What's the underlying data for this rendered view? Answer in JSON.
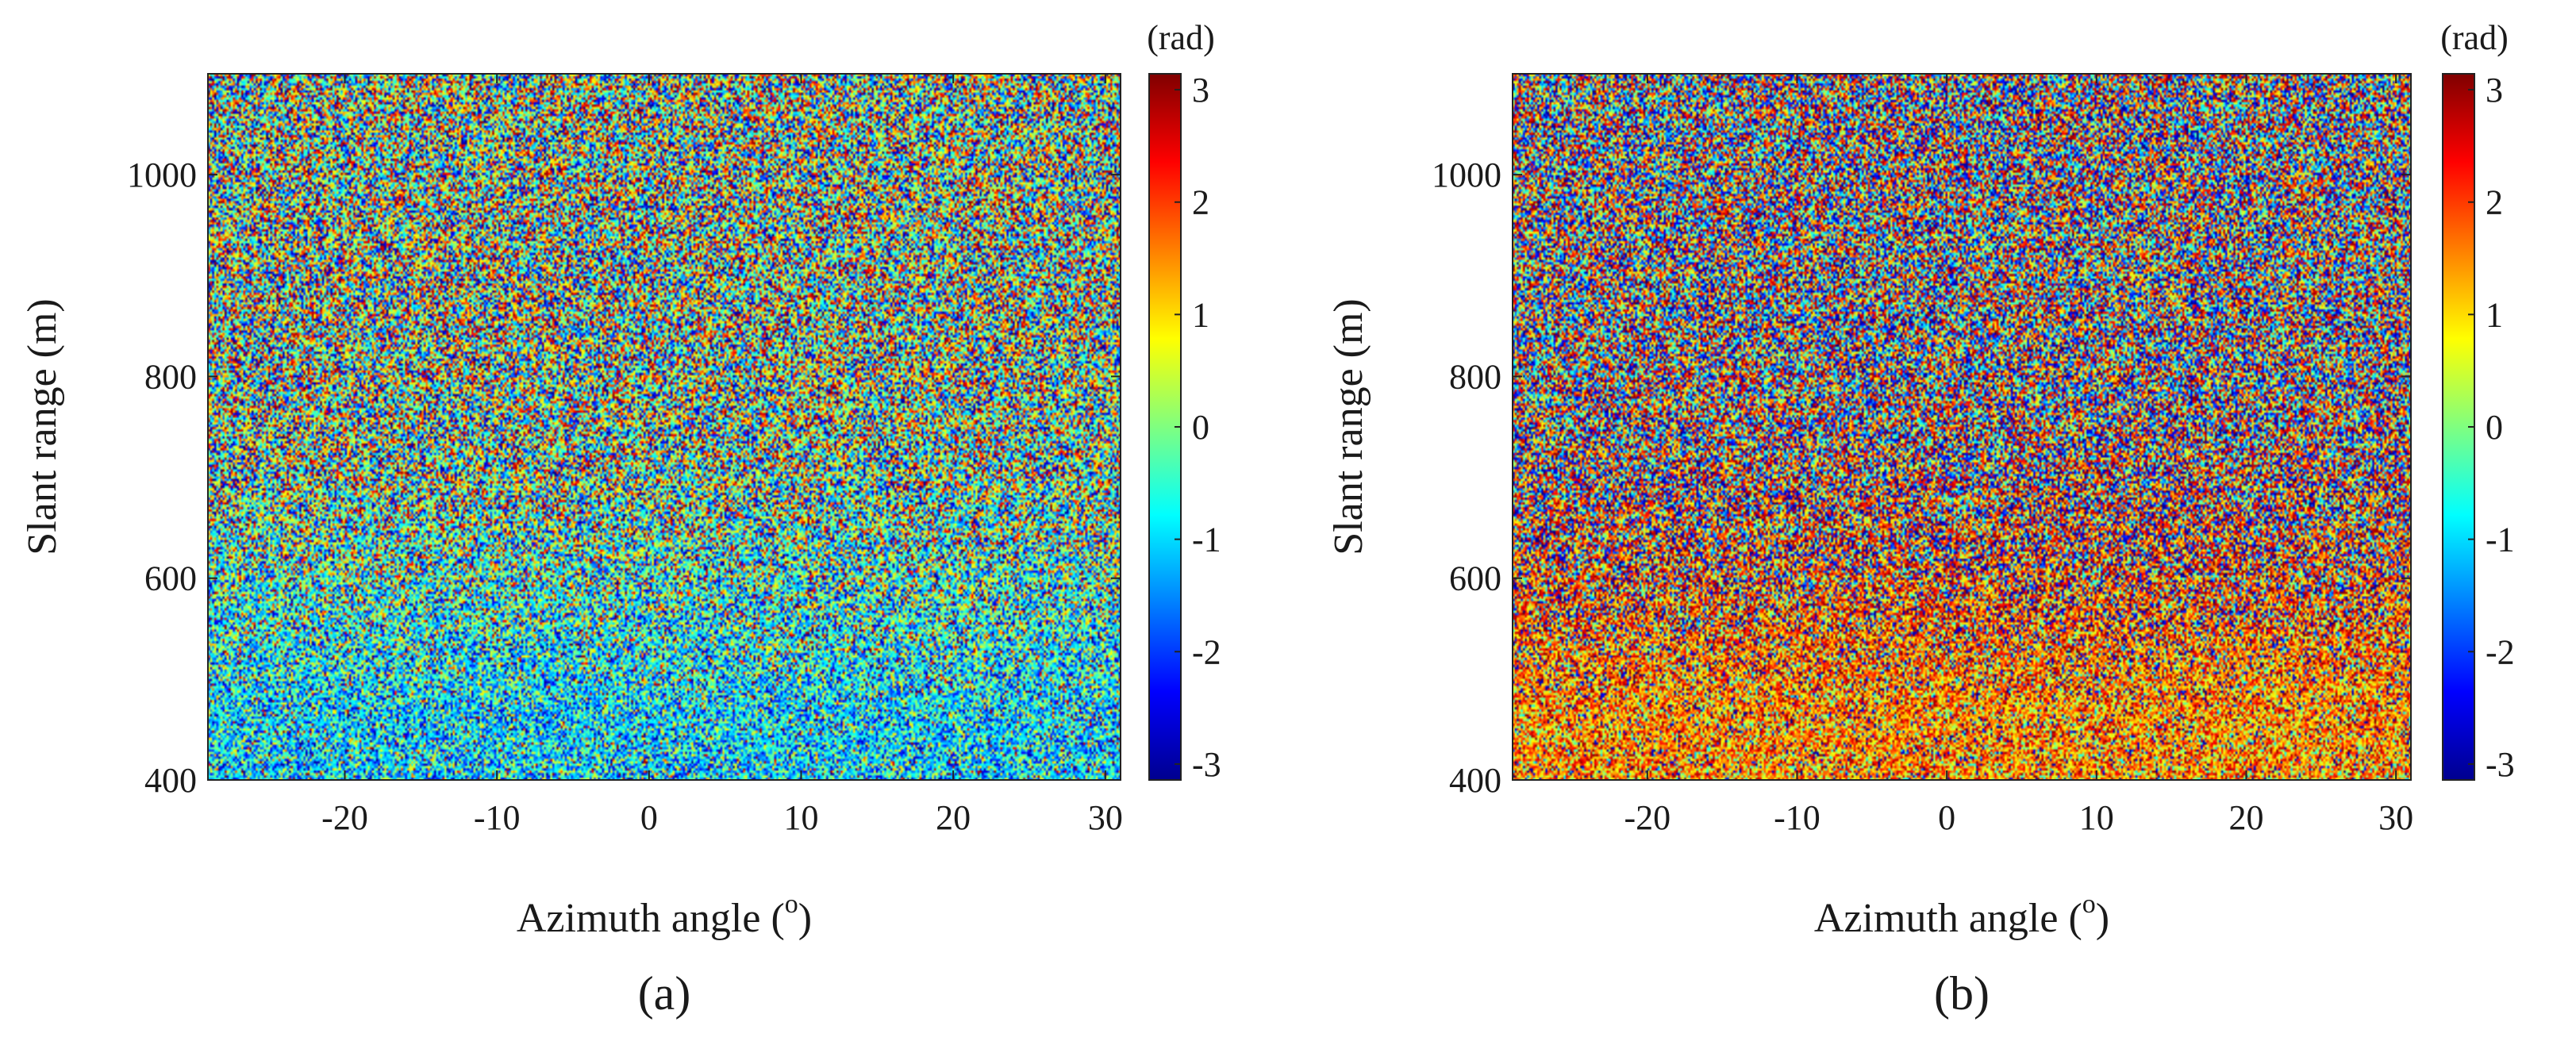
{
  "chart_data": [
    {
      "type": "heatmap",
      "panel_label": "(a)",
      "xlabel": "Azimuth angle (",
      "xlabel_sup": "o",
      "xlabel_tail": ")",
      "ylabel": "Slant range (m)",
      "xlim": [
        -29,
        31
      ],
      "ylim": [
        400,
        1100
      ],
      "xticks": [
        -20,
        -10,
        0,
        10,
        20,
        30
      ],
      "yticks": [
        400,
        600,
        800,
        1000
      ],
      "colorbar": {
        "label": "(rad)",
        "range": [
          -3.14159,
          3.14159
        ],
        "ticks": [
          -3,
          -2,
          -1,
          0,
          1,
          2,
          3
        ]
      },
      "phase_field": {
        "description": "noisy wrapped phase; near-range (400-650 m) biased toward -1 rad",
        "mean_near_range_rad": -1.0,
        "mean_far_range_rad": 0.0
      }
    },
    {
      "type": "heatmap",
      "panel_label": "(b)",
      "xlabel": "Azimuth angle (",
      "xlabel_sup": "o",
      "xlabel_tail": ")",
      "ylabel": "Slant range (m)",
      "xlim": [
        -29,
        31
      ],
      "ylim": [
        400,
        1100
      ],
      "xticks": [
        -20,
        -10,
        0,
        10,
        20,
        30
      ],
      "yticks": [
        400,
        600,
        800,
        1000
      ],
      "colorbar": {
        "label": "(rad)",
        "range": [
          -3.14159,
          3.14159
        ],
        "ticks": [
          -3,
          -2,
          -1,
          0,
          1,
          2,
          3
        ]
      },
      "phase_field": {
        "description": "noisy wrapped phase; near-range (400-600 m) biased toward +1.5 rad",
        "mean_near_range_rad": 1.5,
        "mean_far_range_rad": 3.0
      }
    }
  ],
  "colors": {
    "jet": [
      "#00008f",
      "#0000ff",
      "#00ffff",
      "#ffff00",
      "#ff0000",
      "#800000"
    ]
  }
}
